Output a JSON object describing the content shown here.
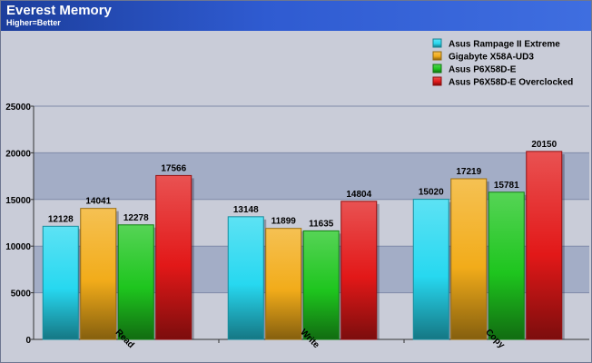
{
  "header": {
    "title": "Everest Memory",
    "subtitle": "Higher=Better"
  },
  "chart_data": {
    "type": "bar",
    "title": "Everest Memory",
    "subtitle": "Higher=Better",
    "categories": [
      "Read",
      "Write",
      "Copy"
    ],
    "series": [
      {
        "name": "Asus Rampage II Extreme",
        "values": [
          12128,
          13148,
          15020
        ],
        "color": "#27d8f0"
      },
      {
        "name": "Gigabyte X58A-UD3",
        "values": [
          14041,
          11899,
          17219
        ],
        "color": "#f2ac1a"
      },
      {
        "name": "Asus P6X58D-E",
        "values": [
          12278,
          11635,
          15781
        ],
        "color": "#1ec51e"
      },
      {
        "name": "Asus P6X58D-E Overclocked",
        "values": [
          17566,
          14804,
          20150
        ],
        "color": "#e21818"
      }
    ],
    "ylim": [
      0,
      25000
    ],
    "yticks": [
      0,
      5000,
      10000,
      15000,
      20000,
      25000
    ],
    "legend_position": "top-right",
    "grid": true,
    "data_labels": true
  }
}
